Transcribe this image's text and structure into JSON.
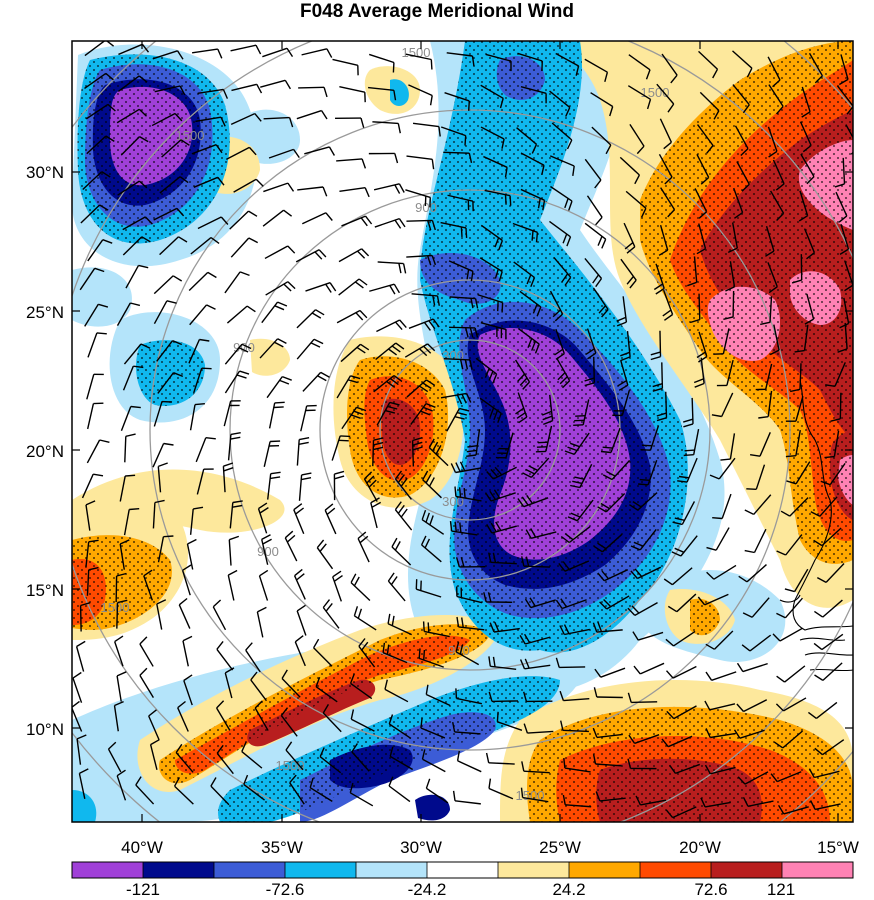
{
  "title": "F048 Average Meridional Wind",
  "lat_ticks": [
    "30°N",
    "25°N",
    "20°N",
    "15°N",
    "10°N"
  ],
  "lon_ticks": [
    "40°W",
    "35°W",
    "30°W",
    "25°W",
    "20°W",
    "15°W"
  ],
  "colorbar": {
    "colors": [
      "#a040d8",
      "#000a8c",
      "#3c5cd6",
      "#10b8ee",
      "#b4e4fa",
      "#ffffff",
      "#fde89c",
      "#ffa800",
      "#ff4a00",
      "#b81e1e",
      "#ff82b4"
    ],
    "labels": [
      "-121",
      "-72.6",
      "-24.2",
      "24.2",
      "72.6",
      "121"
    ]
  },
  "ring_labels": [
    "300",
    "300",
    "900",
    "900",
    "900",
    "900",
    "1500",
    "1500",
    "1500",
    "1500",
    "1500",
    "1500"
  ],
  "colors": {
    "ring": "#9a9a9a",
    "barb": "#000000",
    "coast": "#000000"
  }
}
